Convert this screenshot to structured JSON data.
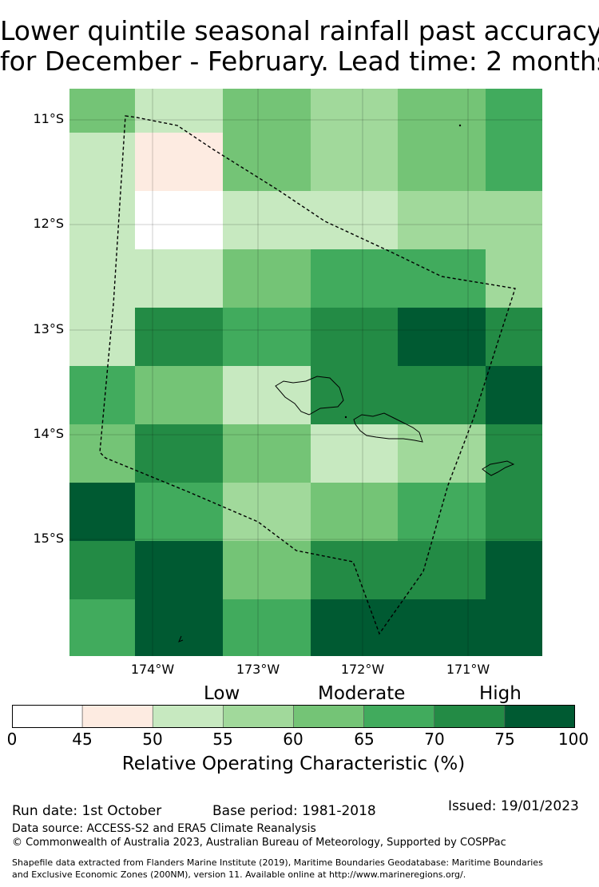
{
  "title": {
    "line1": "Lower quintile seasonal rainfall past accuracy",
    "line2": "for December - February. Lead time: 2 months"
  },
  "map": {
    "lat_labels": [
      "11°S",
      "12°S",
      "13°S",
      "14°S",
      "15°S"
    ],
    "lon_labels": [
      "174°W",
      "173°W",
      "172°W",
      "171°W"
    ],
    "grid_roc_percent": [
      [
        60,
        50,
        60,
        55,
        60,
        65
      ],
      [
        50,
        45,
        60,
        55,
        60,
        65
      ],
      [
        50,
        0,
        50,
        50,
        55,
        55
      ],
      [
        50,
        50,
        60,
        65,
        65,
        55
      ],
      [
        50,
        70,
        65,
        70,
        75,
        70
      ],
      [
        65,
        60,
        50,
        70,
        70,
        75
      ],
      [
        60,
        70,
        60,
        50,
        55,
        70
      ],
      [
        75,
        65,
        55,
        60,
        65,
        70
      ],
      [
        70,
        75,
        60,
        70,
        70,
        75
      ],
      [
        65,
        75,
        65,
        75,
        75,
        75
      ]
    ]
  },
  "colorbar": {
    "categories": [
      "Low",
      "Moderate",
      "High"
    ],
    "ticks": [
      "0",
      "45",
      "50",
      "55",
      "60",
      "65",
      "70",
      "75",
      "100"
    ],
    "colors": [
      "#ffffff",
      "#fdebe1",
      "#c7e9c0",
      "#a1d99b",
      "#74c476",
      "#41ab5d",
      "#238b45",
      "#005a32"
    ],
    "label": "Relative Operating Characteristic (%)"
  },
  "footer": {
    "run_date": "Run date: 1st October",
    "base_period": "Base period: 1981-2018",
    "issued": "Issued: 19/01/2023",
    "data_source": "Data source: ACCESS-S2 and ERA5 Climate Reanalysis",
    "copyright": "© Commonwealth of Australia 2023, Australian Bureau of Meteorology, Supported by COSPPac",
    "shapefile_line1": "Shapefile data extracted from Flanders Marine Institute (2019), Maritime Boundaries Geodatabase: Maritime Boundaries",
    "shapefile_line2": "and Exclusive Economic Zones (200NM), version 11. Available online at http://www.marineregions.org/."
  }
}
